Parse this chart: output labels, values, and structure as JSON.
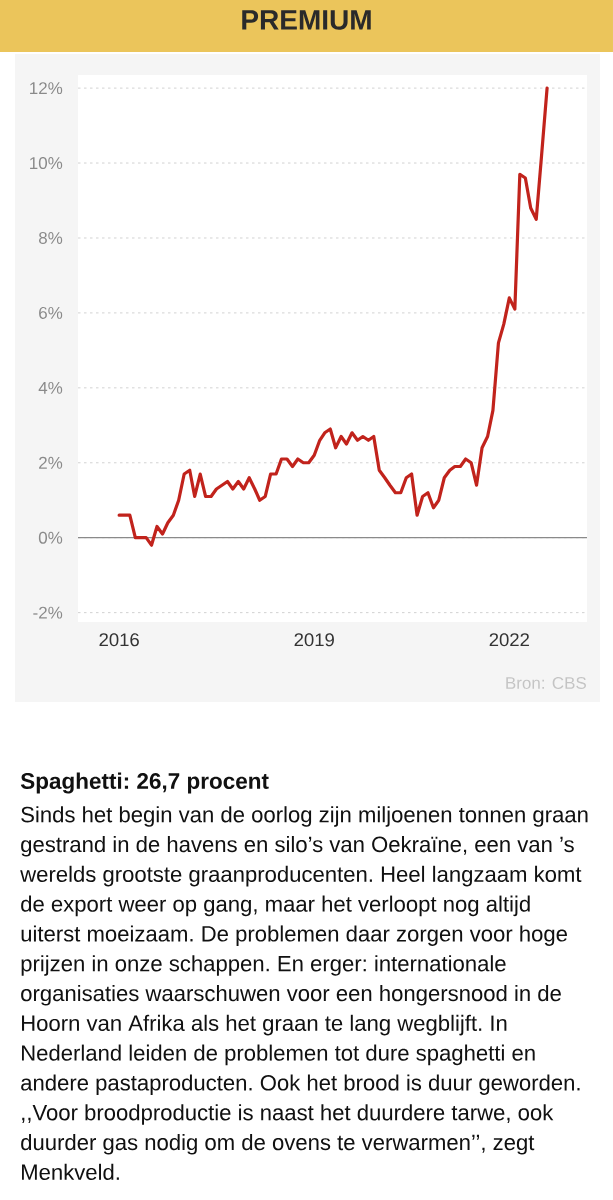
{
  "chart_data": {
    "type": "line",
    "x": [
      "2016-01",
      "2016-02",
      "2016-03",
      "2016-04",
      "2016-05",
      "2016-06",
      "2016-07",
      "2016-08",
      "2016-09",
      "2016-10",
      "2016-11",
      "2016-12",
      "2017-01",
      "2017-02",
      "2017-03",
      "2017-04",
      "2017-05",
      "2017-06",
      "2017-07",
      "2017-08",
      "2017-09",
      "2017-10",
      "2017-11",
      "2017-12",
      "2018-01",
      "2018-02",
      "2018-03",
      "2018-04",
      "2018-05",
      "2018-06",
      "2018-07",
      "2018-08",
      "2018-09",
      "2018-10",
      "2018-11",
      "2018-12",
      "2019-01",
      "2019-02",
      "2019-03",
      "2019-04",
      "2019-05",
      "2019-06",
      "2019-07",
      "2019-08",
      "2019-09",
      "2019-10",
      "2019-11",
      "2019-12",
      "2020-01",
      "2020-02",
      "2020-03",
      "2020-04",
      "2020-05",
      "2020-06",
      "2020-07",
      "2020-08",
      "2020-09",
      "2020-10",
      "2020-11",
      "2020-12",
      "2021-01",
      "2021-02",
      "2021-03",
      "2021-04",
      "2021-05",
      "2021-06",
      "2021-07",
      "2021-08",
      "2021-09",
      "2021-10",
      "2021-11",
      "2021-12",
      "2022-01",
      "2022-02",
      "2022-03",
      "2022-04",
      "2022-05",
      "2022-06",
      "2022-07",
      "2022-08"
    ],
    "series": [
      {
        "color": "#c1231c",
        "values": [
          0.6,
          0.6,
          0.6,
          0.0,
          0.0,
          0.0,
          -0.2,
          0.3,
          0.1,
          0.4,
          0.6,
          1.0,
          1.7,
          1.8,
          1.1,
          1.7,
          1.1,
          1.1,
          1.3,
          1.4,
          1.5,
          1.3,
          1.5,
          1.3,
          1.6,
          1.3,
          1.0,
          1.1,
          1.7,
          1.7,
          2.1,
          2.1,
          1.9,
          2.1,
          2.0,
          2.0,
          2.2,
          2.6,
          2.8,
          2.9,
          2.4,
          2.7,
          2.5,
          2.8,
          2.6,
          2.7,
          2.6,
          2.7,
          1.8,
          1.6,
          1.4,
          1.2,
          1.2,
          1.6,
          1.7,
          0.6,
          1.1,
          1.2,
          0.8,
          1.0,
          1.6,
          1.8,
          1.9,
          1.9,
          2.1,
          2.0,
          1.4,
          2.4,
          2.7,
          3.4,
          5.2,
          5.7,
          6.4,
          6.1,
          9.7,
          9.6,
          8.8,
          8.5,
          10.2,
          12.0
        ]
      }
    ],
    "xlim": [
      "2015-05-15",
      "2023-03-13"
    ],
    "xticks": [
      "2016",
      "2019",
      "2022"
    ],
    "ylim": [
      -2.25,
      12.35
    ],
    "yticks": [
      {
        "value": -2,
        "label": "-2%"
      },
      {
        "value": 0,
        "label": "0%"
      },
      {
        "value": 2,
        "label": "2%"
      },
      {
        "value": 4,
        "label": "4%"
      },
      {
        "value": 6,
        "label": "6%"
      },
      {
        "value": 8,
        "label": "8%"
      },
      {
        "value": 10,
        "label": "10%"
      },
      {
        "value": 12,
        "label": "12%"
      }
    ],
    "grid": "y",
    "line_style": "solid",
    "ref_lines": [
      {
        "axis": "y",
        "value": 0,
        "color": "#8a8a8a"
      }
    ],
    "annotations": [
      "PREMIUM",
      "Bron: CBS",
      "Spaghetti: 26,7 procent",
      "Sinds het begin van de oorlog zijn miljoenen tonnen graan gestrand in de havens en silo’s van Oekraïne, een van ’s werelds grootste graanproducenten. Heel langzaam komt de export weer op gang, maar het verloopt nog altijd uiterst moeizaam. De problemen daar zorgen voor hoge prijzen in onze schappen. En erger: internationale organisaties waarschuwen voor een hongersnood in de Hoorn van Afrika als het graan te lang wegblijft. In Nederland leiden de problemen tot dure spaghetti en andere pastaproducten. Ook het brood is duur geworden. ,,Voor broodproductie is naast het duurdere tarwe, ook duurder gas nodig om de ovens te verwarmen’’, zegt Menkveld."
    ]
  }
}
